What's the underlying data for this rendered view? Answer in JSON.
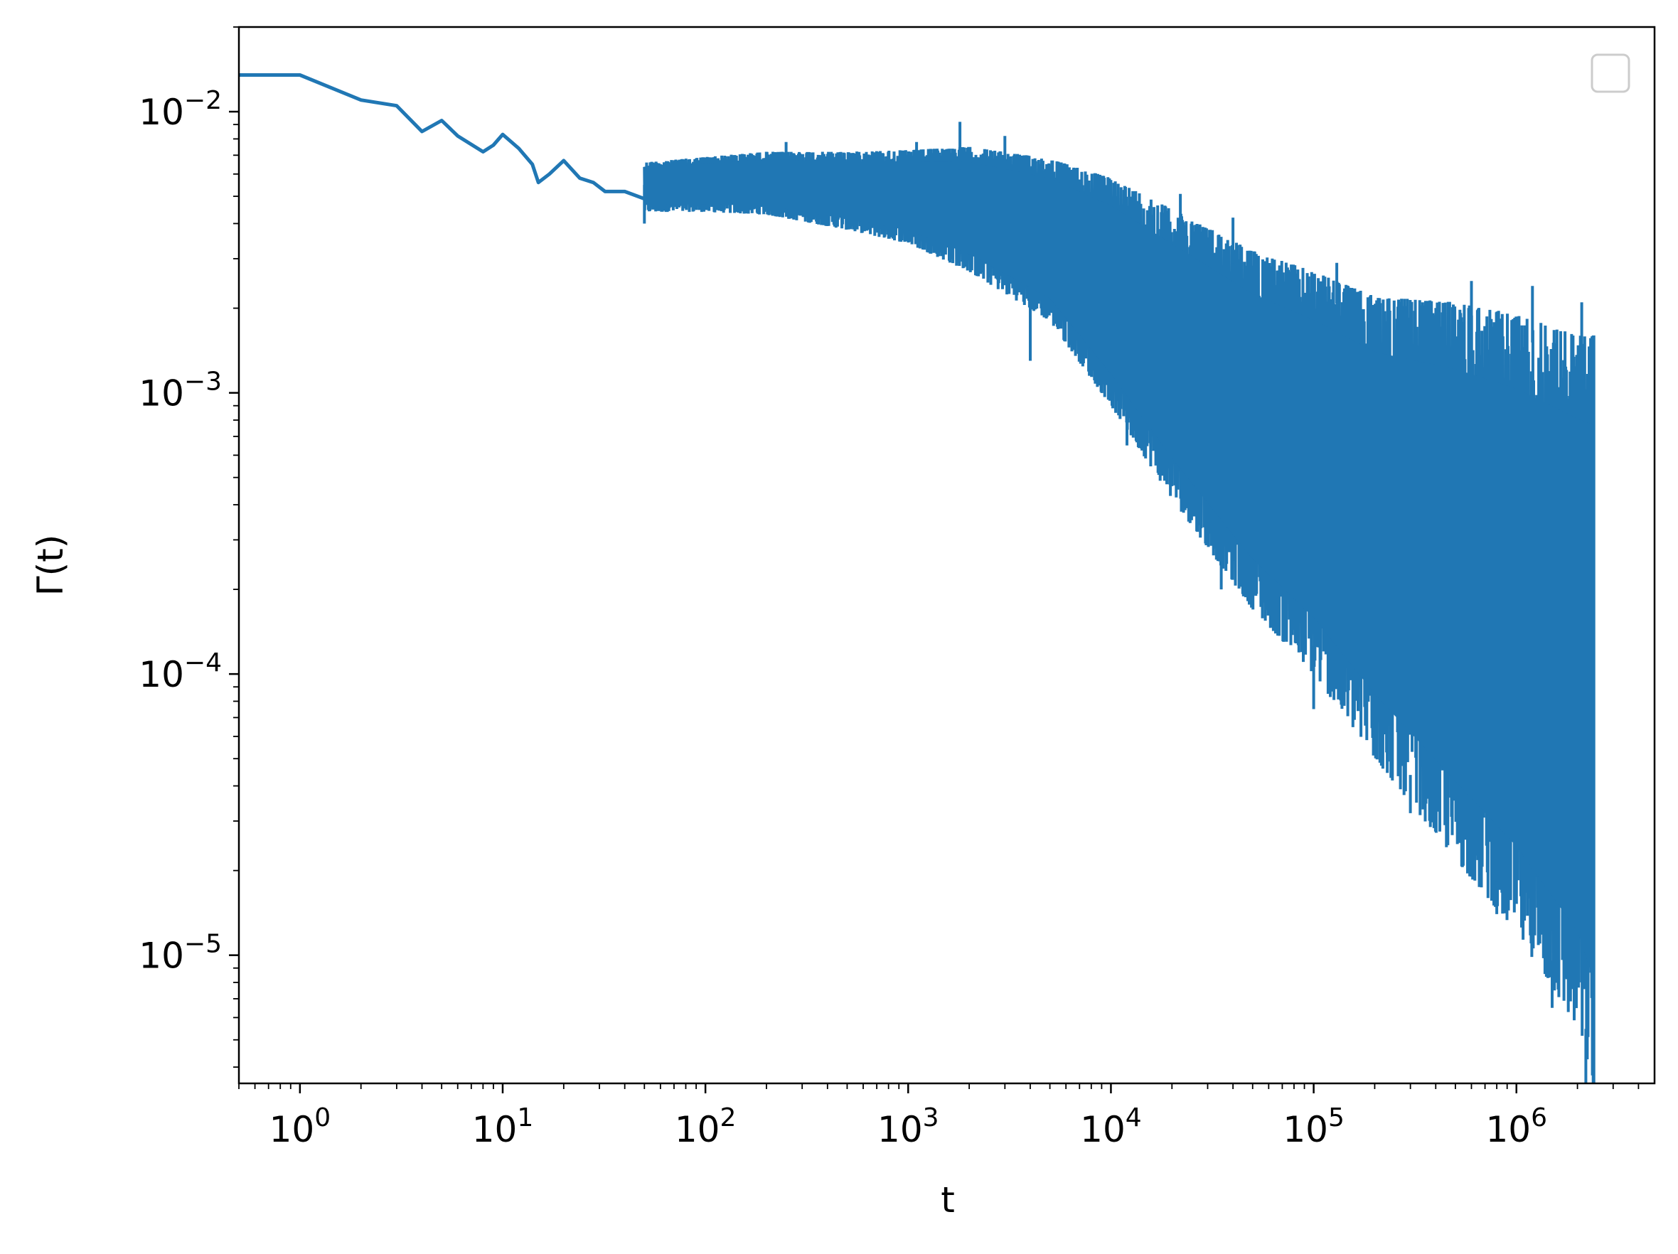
{
  "chart_data": {
    "type": "line",
    "title": "",
    "xlabel": "t",
    "ylabel": "Γ(t)",
    "xscale": "log",
    "yscale": "log",
    "xlim": [
      0.5,
      4800000
    ],
    "ylim": [
      3.5e-06,
      0.02
    ],
    "grid": false,
    "legend": {
      "placement": "top-right",
      "entries": []
    },
    "x_ticks": [
      {
        "value": 1,
        "base": "10",
        "exp": "0"
      },
      {
        "value": 10,
        "base": "10",
        "exp": "1"
      },
      {
        "value": 100,
        "base": "10",
        "exp": "2"
      },
      {
        "value": 1000,
        "base": "10",
        "exp": "3"
      },
      {
        "value": 10000,
        "base": "10",
        "exp": "4"
      },
      {
        "value": 100000,
        "base": "10",
        "exp": "5"
      },
      {
        "value": 1000000,
        "base": "10",
        "exp": "6"
      }
    ],
    "y_ticks": [
      {
        "value": 0.01,
        "base": "10",
        "exp": "−2"
      },
      {
        "value": 0.001,
        "base": "10",
        "exp": "−3"
      },
      {
        "value": 0.0001,
        "base": "10",
        "exp": "−4"
      },
      {
        "value": 1e-05,
        "base": "10",
        "exp": "−5"
      }
    ],
    "series": [
      {
        "color": "#2077b4",
        "points": [
          [
            0.5,
            0.0135
          ],
          [
            1,
            0.0135
          ],
          [
            2,
            0.011
          ],
          [
            3,
            0.0105
          ],
          [
            4,
            0.0085
          ],
          [
            5,
            0.0093
          ],
          [
            6,
            0.0082
          ],
          [
            8,
            0.0072
          ],
          [
            9,
            0.0076
          ],
          [
            10,
            0.0083
          ],
          [
            12,
            0.0074
          ],
          [
            14,
            0.0065
          ],
          [
            15,
            0.0056
          ],
          [
            17,
            0.006
          ],
          [
            20,
            0.0067
          ],
          [
            24,
            0.0058
          ],
          [
            28,
            0.0056
          ],
          [
            32,
            0.0052
          ],
          [
            40,
            0.0052
          ],
          [
            50,
            0.0049
          ]
        ],
        "band": [
          [
            50,
            0.0066,
            0.0044
          ],
          [
            100,
            0.0069,
            0.0044
          ],
          [
            200,
            0.0072,
            0.0043
          ],
          [
            500,
            0.0072,
            0.0038
          ],
          [
            1000,
            0.0073,
            0.0034
          ],
          [
            2000,
            0.0075,
            0.0027
          ],
          [
            5000,
            0.0068,
            0.0018
          ],
          [
            10000,
            0.0058,
            0.0009
          ],
          [
            20000,
            0.0045,
            0.00042
          ],
          [
            50000,
            0.0032,
            0.00017
          ],
          [
            100000,
            0.0027,
            0.0001
          ],
          [
            200000,
            0.0022,
            5e-05
          ],
          [
            500000,
            0.0021,
            2.2e-05
          ],
          [
            1000000,
            0.0019,
            1.2e-05
          ],
          [
            2000000,
            0.0016,
            5.5e-06
          ],
          [
            2400000,
            0.0016,
            3.5e-06
          ]
        ],
        "extremes": [
          [
            1800,
            0.0092
          ],
          [
            3000,
            0.0082
          ],
          [
            1100,
            0.0078
          ],
          [
            250,
            0.0078
          ],
          [
            22000,
            0.0051
          ],
          [
            40000,
            0.0042
          ],
          [
            130000,
            0.0029
          ],
          [
            600000,
            0.0025
          ],
          [
            1200000,
            0.0024
          ],
          [
            2100000,
            0.0021
          ],
          [
            4000,
            0.0013
          ],
          [
            50,
            0.004
          ],
          [
            12000,
            0.00065
          ],
          [
            35000,
            0.0002
          ],
          [
            100000,
            7.5e-05
          ],
          [
            300000,
            3.2e-05
          ],
          [
            800000,
            1.4e-05
          ],
          [
            1500000,
            6.5e-06
          ],
          [
            2200000,
            3.5e-06
          ]
        ]
      }
    ]
  }
}
